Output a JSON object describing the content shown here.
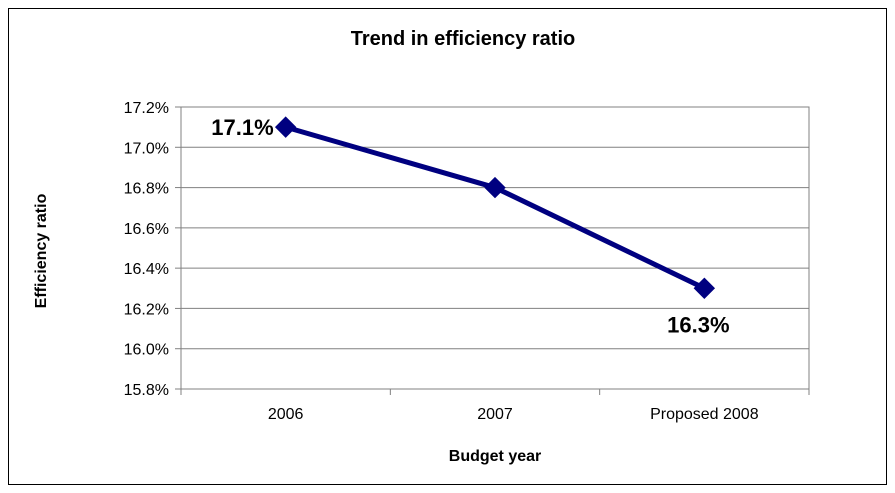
{
  "chart_data": {
    "type": "line",
    "title": "Trend in efficiency ratio",
    "xlabel": "Budget year",
    "ylabel": "Efficiency ratio",
    "categories": [
      "2006",
      "2007",
      "Proposed 2008"
    ],
    "series": [
      {
        "values": [
          17.1,
          16.8,
          16.3
        ],
        "color": "#000080"
      }
    ],
    "ylim": [
      15.8,
      17.2
    ],
    "yticks": [
      15.8,
      16.0,
      16.2,
      16.4,
      16.6,
      16.8,
      17.0,
      17.2
    ],
    "ytick_labels": [
      "15.8%",
      "16.0%",
      "16.2%",
      "16.4%",
      "16.6%",
      "16.8%",
      "17.0%",
      "17.2%"
    ],
    "data_labels": [
      {
        "index": 0,
        "text": "17.1%",
        "position": "left"
      },
      {
        "index": 2,
        "text": "16.3%",
        "position": "below"
      }
    ],
    "grid": true,
    "legend": "none",
    "marker": "diamond"
  }
}
